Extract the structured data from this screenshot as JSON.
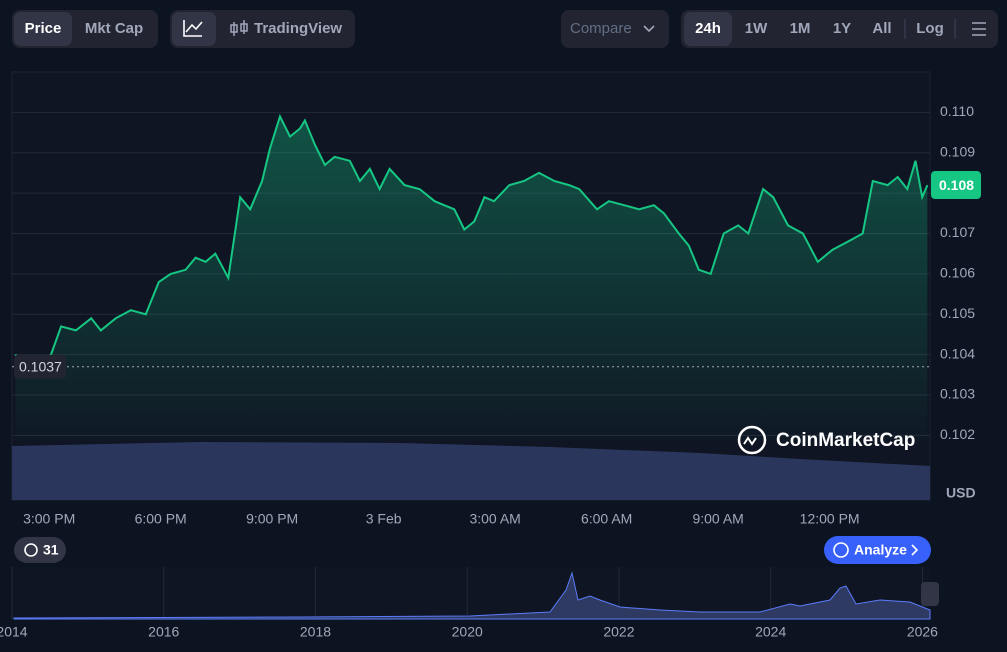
{
  "ui": {
    "tabs": [
      "Price",
      "Mkt Cap"
    ],
    "tradingview": "TradingView",
    "compare": "Compare",
    "ranges": [
      "24h",
      "1W",
      "1M",
      "1Y",
      "All"
    ],
    "log": "Log",
    "currency": "USD",
    "events": "31",
    "analyze": "Analyze",
    "brand": "CoinMarketCap"
  },
  "chart_data": {
    "type": "area",
    "color": "#16c784",
    "x": [
      14.09,
      14.52,
      15.05,
      15.32,
      15.72,
      16.13,
      16.39,
      16.79,
      17.2,
      17.6,
      17.95,
      18.27,
      18.67,
      18.94,
      19.21,
      19.47,
      19.82,
      20.14,
      20.41,
      20.73,
      20.94,
      21.21,
      21.48,
      21.75,
      21.88,
      22.15,
      22.42,
      22.68,
      23.09,
      23.36,
      23.63,
      23.89,
      24.16,
      24.56,
      24.97,
      25.37,
      25.63,
      25.9,
      26.17,
      26.44,
      26.71,
      26.97,
      27.38,
      27.78,
      28.18,
      28.59,
      28.99,
      29.26,
      29.74,
      30.06,
      30.47,
      30.87,
      31.27,
      31.54,
      31.94,
      32.21,
      32.48,
      32.8,
      33.15,
      33.54,
      33.81,
      34.21,
      34.48,
      34.88,
      35.28,
      35.68,
      36.08,
      36.49,
      36.89,
      37.16,
      37.56,
      37.83,
      38.09,
      38.31,
      38.49,
      38.63
    ],
    "values": [
      0.104,
      0.1036,
      0.104,
      0.1047,
      0.1046,
      0.1049,
      0.1046,
      0.1049,
      0.1051,
      0.105,
      0.1058,
      0.106,
      0.1061,
      0.1064,
      0.1063,
      0.1065,
      0.1059,
      0.1079,
      0.1076,
      0.1083,
      0.1091,
      0.1099,
      0.1094,
      0.1096,
      0.1098,
      0.1092,
      0.1087,
      0.1089,
      0.1088,
      0.1083,
      0.1086,
      0.1081,
      0.1086,
      0.1082,
      0.1081,
      0.1078,
      0.1077,
      0.1076,
      0.1071,
      0.1073,
      0.1079,
      0.1078,
      0.1082,
      0.1083,
      0.1085,
      0.1083,
      0.1082,
      0.1081,
      0.1076,
      0.1078,
      0.1077,
      0.1076,
      0.1077,
      0.1075,
      0.107,
      0.1067,
      0.1061,
      0.106,
      0.107,
      0.1072,
      0.107,
      0.1081,
      0.1079,
      0.1072,
      0.107,
      0.1063,
      0.1066,
      0.1068,
      0.107,
      0.1083,
      0.1082,
      0.1084,
      0.1081,
      0.1088,
      0.1079,
      0.1082
    ],
    "xlim": [
      14,
      38.7
    ],
    "xticks": [
      {
        "value": 15,
        "label": "3:00 PM"
      },
      {
        "value": 18,
        "label": "6:00 PM"
      },
      {
        "value": 21,
        "label": "9:00 PM"
      },
      {
        "value": 24,
        "label": "3 Feb"
      },
      {
        "value": 27,
        "label": "3:00 AM"
      },
      {
        "value": 30,
        "label": "6:00 AM"
      },
      {
        "value": 33,
        "label": "9:00 AM"
      },
      {
        "value": 36,
        "label": "12:00 PM"
      }
    ],
    "ylim": [
      0.1004,
      0.111
    ],
    "yticks": [
      0.102,
      0.103,
      0.104,
      0.105,
      0.106,
      0.107,
      0.108,
      0.109,
      {
        "value": 0.11,
        "label": "0.110"
      }
    ],
    "grid": true,
    "reference_line": 0.1037,
    "current_price": {
      "value": 0.1082,
      "label": "0.108"
    }
  },
  "navigator": {
    "xlim": [
      2014,
      2026.1
    ],
    "xticks": [
      2014,
      2016,
      2018,
      2020,
      2022,
      2024,
      2026
    ]
  }
}
